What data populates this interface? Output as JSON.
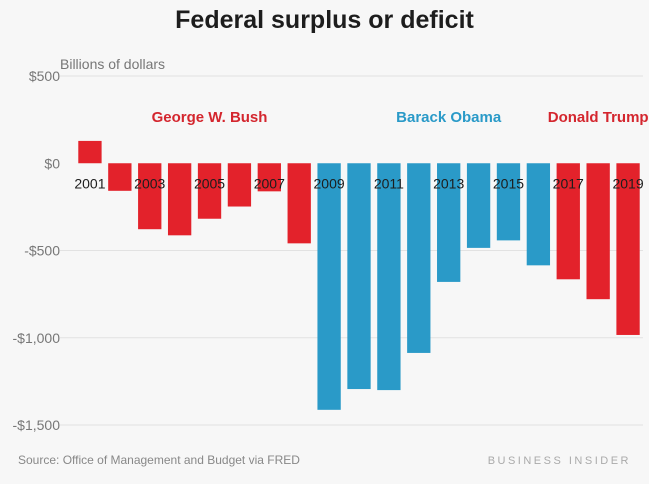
{
  "chart_data": {
    "type": "bar",
    "title": "Federal surplus or deficit",
    "ylabel": "Billions of dollars",
    "xlabel": "",
    "ylim": [
      -1500,
      500
    ],
    "yticks": [
      500,
      0,
      -500,
      -1000,
      -1500
    ],
    "ytick_labels": [
      "$500",
      "$0",
      "-$500",
      "-$1,000",
      "-$1,500"
    ],
    "grid": true,
    "categories": [
      "2001",
      "2002",
      "2003",
      "2004",
      "2005",
      "2006",
      "2007",
      "2008",
      "2009",
      "2010",
      "2011",
      "2012",
      "2013",
      "2014",
      "2015",
      "2016",
      "2017",
      "2018",
      "2019"
    ],
    "xtick_labels": [
      "2001",
      "",
      "2003",
      "",
      "2005",
      "",
      "2007",
      "",
      "2009",
      "",
      "2011",
      "",
      "2013",
      "",
      "2015",
      "",
      "2017",
      "",
      "2019"
    ],
    "values": [
      128,
      -158,
      -378,
      -413,
      -318,
      -248,
      -161,
      -459,
      -1413,
      -1294,
      -1300,
      -1087,
      -680,
      -485,
      -442,
      -585,
      -665,
      -779,
      -984
    ],
    "party": [
      "R",
      "R",
      "R",
      "R",
      "R",
      "R",
      "R",
      "R",
      "D",
      "D",
      "D",
      "D",
      "D",
      "D",
      "D",
      "D",
      "R",
      "R",
      "R"
    ],
    "colors": {
      "R": "#e3222b",
      "D": "#2a9ac8"
    },
    "annotations": [
      {
        "text": "George W. Bush",
        "color": "#d4262e",
        "center_year": "2005"
      },
      {
        "text": "Barack Obama",
        "color": "#2a9ac8",
        "center_year": "2013"
      },
      {
        "text": "Donald Trump",
        "color": "#d4262e",
        "center_year": "2018"
      }
    ]
  },
  "footer": {
    "source": "Source: Office of Management and Budget via FRED",
    "brand": "BUSINESS INSIDER"
  }
}
